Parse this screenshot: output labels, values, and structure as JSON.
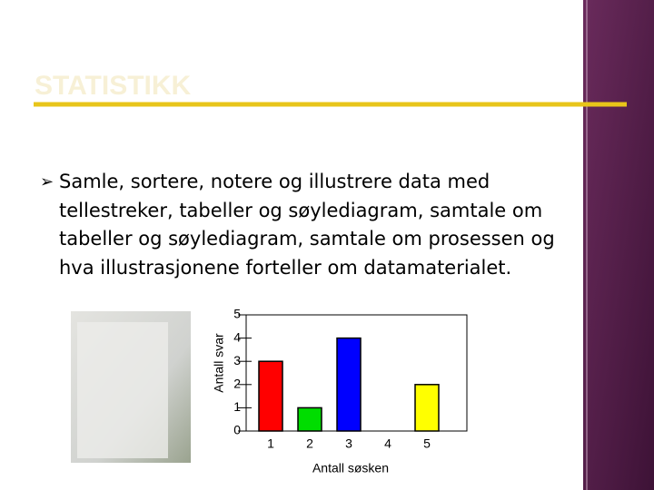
{
  "slide": {
    "title": "STATISTIKK",
    "bullet": "Samle, sortere, notere og illustrere data med tellestreker, tabeller og søylediagram, samtale om tabeller og søylediagram, samtale om prosessen og hva illustrasjonene forteller om datamaterialet."
  },
  "chart_data": {
    "type": "bar",
    "x_label": "Antall søsken",
    "y_label": "Antall svar",
    "categories": [
      "1",
      "2",
      "3",
      "4",
      "5"
    ],
    "values": [
      3,
      1,
      4,
      0,
      2
    ],
    "colors": [
      "#ff0000",
      "#00dd00",
      "#0000ff",
      null,
      "#ffff00"
    ],
    "ylim": [
      0,
      5
    ],
    "yticks": [
      0,
      1,
      2,
      3,
      4,
      5
    ]
  }
}
